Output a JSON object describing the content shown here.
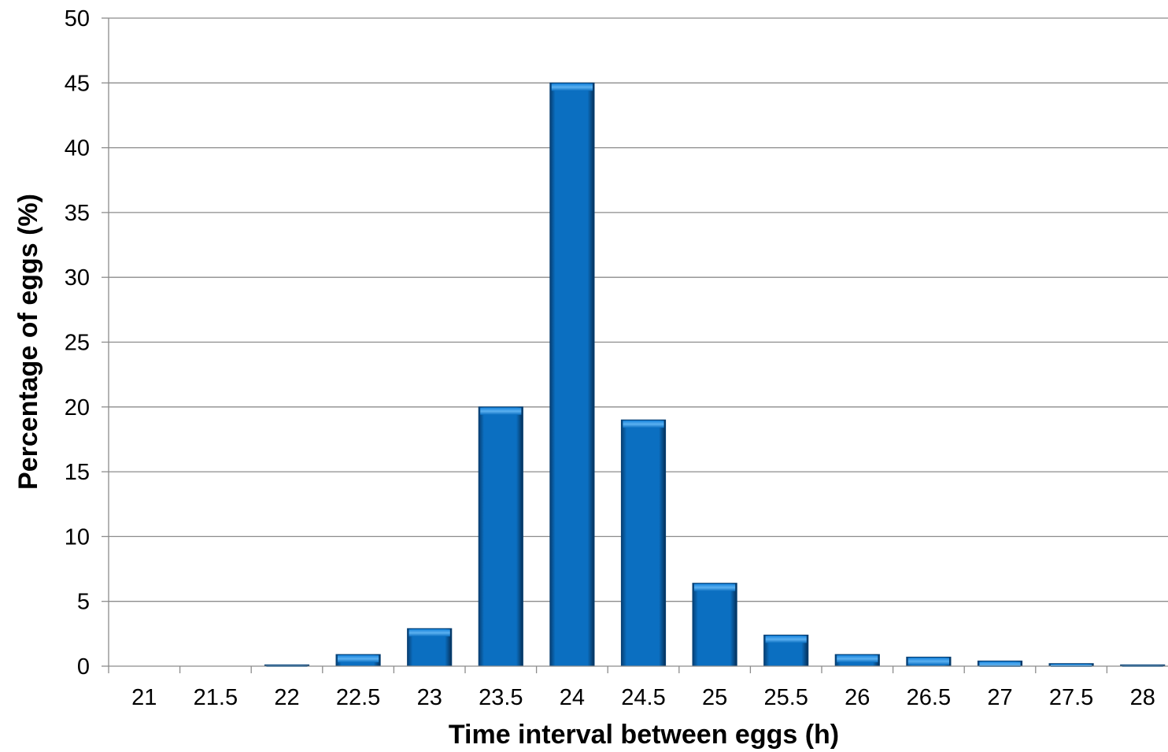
{
  "chart_data": {
    "type": "bar",
    "title": "",
    "xlabel": "Time interval between eggs (h)",
    "ylabel": "Percentage of eggs (%)",
    "categories": [
      "21",
      "21.5",
      "22",
      "22.5",
      "23",
      "23.5",
      "24",
      "24.5",
      "25",
      "25.5",
      "26",
      "26.5",
      "27",
      "27.5",
      "28"
    ],
    "values": [
      0,
      0,
      0.1,
      0.9,
      2.9,
      20,
      45,
      19,
      6.4,
      2.4,
      0.9,
      0.7,
      0.4,
      0.2,
      0.1
    ],
    "ylim": [
      0,
      50
    ],
    "yticks": [
      0,
      5,
      10,
      15,
      20,
      25,
      30,
      35,
      40,
      45,
      50
    ],
    "grid": true,
    "legend": "none",
    "colors": {
      "bar": "#0b6fc1",
      "bar_dark": "#063f73",
      "bar_light": "#4aa3ea",
      "grid": "#8c8c8c"
    }
  }
}
